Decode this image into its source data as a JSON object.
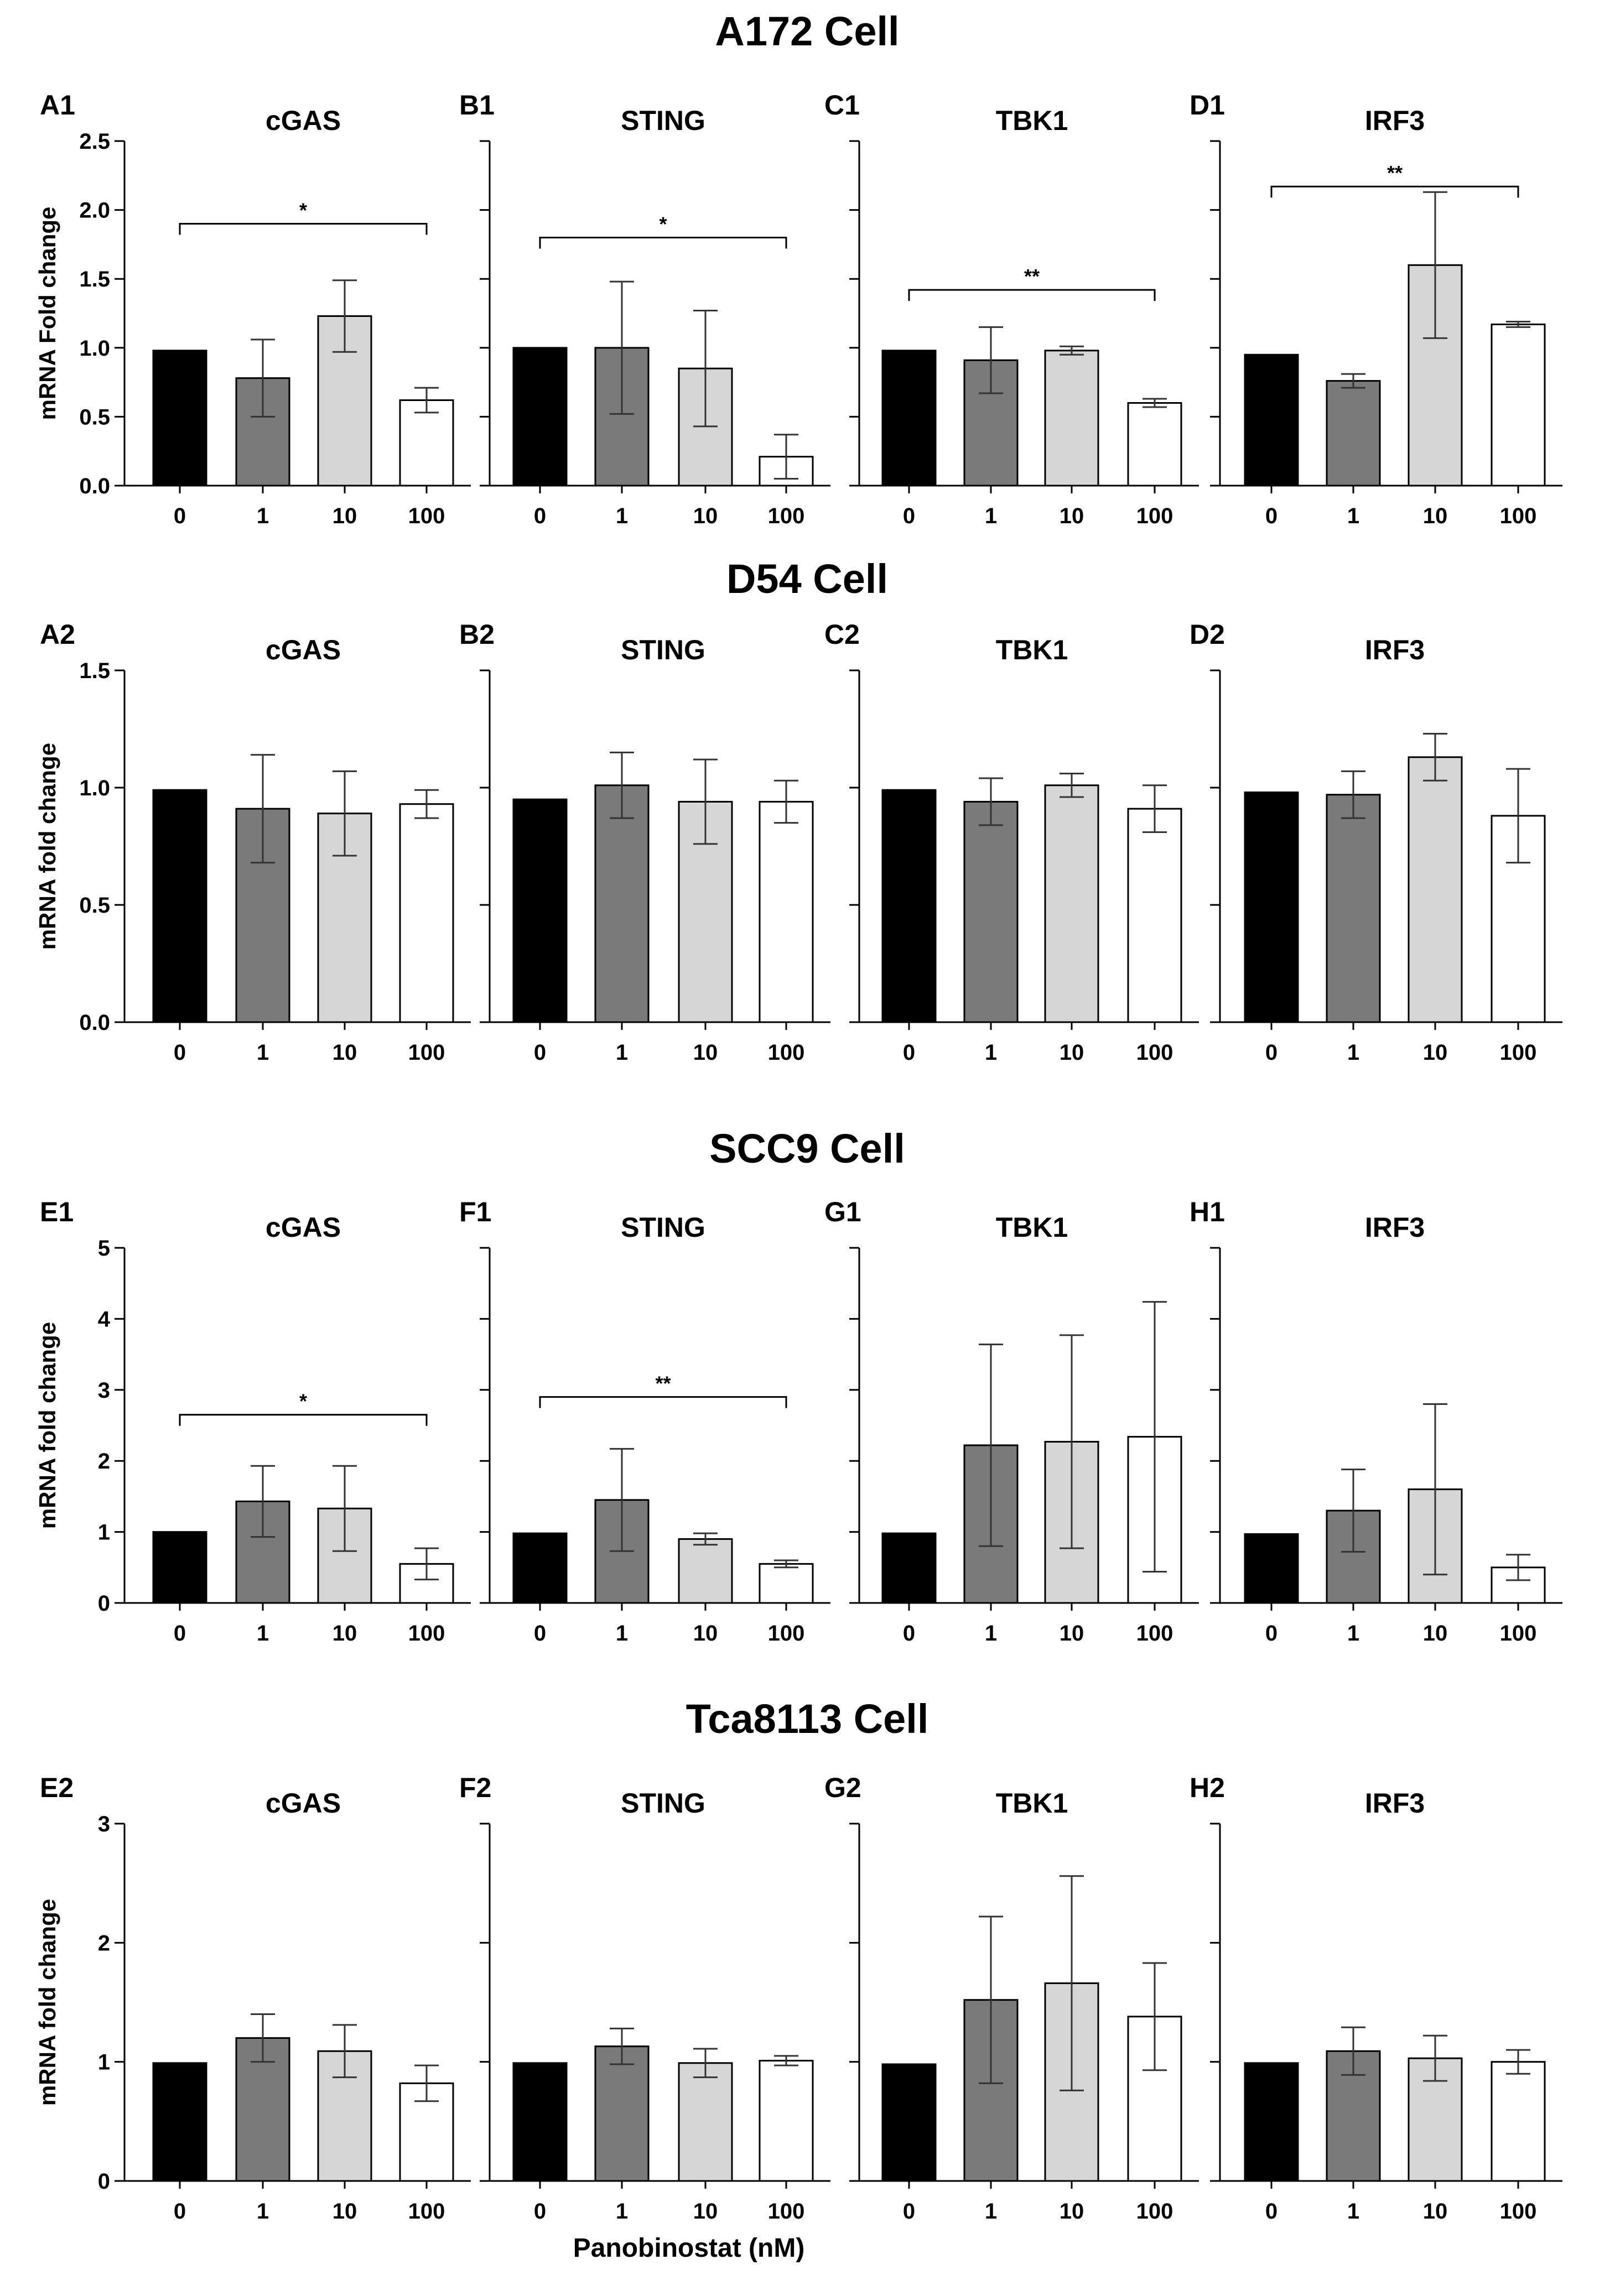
{
  "colors": {
    "c0": "#000000",
    "c1": "#7a7a7a",
    "c10": "#d6d6d6",
    "c100": "#ffffff",
    "axis": "#000000"
  },
  "sections": [
    {
      "title": "A172 Cell",
      "ylabel": "mRNA Fold change",
      "ylim": [
        0,
        2.5
      ],
      "yticks": [
        0,
        0.5,
        1.0,
        1.5,
        2.0,
        2.5
      ],
      "ytick_labels": [
        "0.0",
        "0.5",
        "1.0",
        "1.5",
        "2.0",
        "2.5"
      ]
    },
    {
      "title": "D54 Cell",
      "ylabel": "mRNA fold change",
      "ylim": [
        0,
        1.5
      ],
      "yticks": [
        0,
        0.5,
        1.0,
        1.5
      ],
      "ytick_labels": [
        "0.0",
        "0.5",
        "1.0",
        "1.5"
      ]
    },
    {
      "title": "SCC9 Cell",
      "ylabel": "mRNA fold change",
      "ylim": [
        0,
        5
      ],
      "yticks": [
        0,
        1,
        2,
        3,
        4,
        5
      ],
      "ytick_labels": [
        "0",
        "1",
        "2",
        "3",
        "4",
        "5"
      ]
    },
    {
      "title": "Tca8113 Cell",
      "ylabel": "mRNA fold change",
      "ylim": [
        0,
        3
      ],
      "yticks": [
        0,
        1,
        2,
        3
      ],
      "ytick_labels": [
        "0",
        "1",
        "2",
        "3"
      ]
    }
  ],
  "xlabel": "Panobinostat (nM)",
  "chart_data": [
    {
      "type": "bar",
      "section": 0,
      "label": "A1",
      "title": "cGAS",
      "categories": [
        "0",
        "1",
        "10",
        "100"
      ],
      "values": [
        0.98,
        0.78,
        1.23,
        0.62
      ],
      "errors": [
        0,
        0.28,
        0.26,
        0.09
      ],
      "significance": {
        "from": 0,
        "to": 3,
        "y": 1.9,
        "text": "*"
      }
    },
    {
      "type": "bar",
      "section": 0,
      "label": "B1",
      "title": "STING",
      "categories": [
        "0",
        "1",
        "10",
        "100"
      ],
      "values": [
        1.0,
        1.0,
        0.85,
        0.21
      ],
      "errors": [
        0,
        0.48,
        0.42,
        0.16
      ],
      "significance": {
        "from": 0,
        "to": 3,
        "y": 1.8,
        "text": "*"
      }
    },
    {
      "type": "bar",
      "section": 0,
      "label": "C1",
      "title": "TBK1",
      "categories": [
        "0",
        "1",
        "10",
        "100"
      ],
      "values": [
        0.98,
        0.91,
        0.98,
        0.6
      ],
      "errors": [
        0,
        0.24,
        0.03,
        0.03
      ],
      "significance": {
        "from": 0,
        "to": 3,
        "y": 1.42,
        "text": "**"
      }
    },
    {
      "type": "bar",
      "section": 0,
      "label": "D1",
      "title": "IRF3",
      "categories": [
        "0",
        "1",
        "10",
        "100"
      ],
      "values": [
        0.95,
        0.76,
        1.6,
        1.17
      ],
      "errors": [
        0,
        0.05,
        0.53,
        0.02
      ],
      "significance": {
        "from": 0,
        "to": 3,
        "y": 2.17,
        "text": "**"
      }
    },
    {
      "type": "bar",
      "section": 1,
      "label": "A2",
      "title": "cGAS",
      "categories": [
        "0",
        "1",
        "10",
        "100"
      ],
      "values": [
        0.99,
        0.91,
        0.89,
        0.93
      ],
      "errors": [
        0,
        0.23,
        0.18,
        0.06
      ]
    },
    {
      "type": "bar",
      "section": 1,
      "label": "B2",
      "title": "STING",
      "categories": [
        "0",
        "1",
        "10",
        "100"
      ],
      "values": [
        0.95,
        1.01,
        0.94,
        0.94
      ],
      "errors": [
        0,
        0.14,
        0.18,
        0.09
      ]
    },
    {
      "type": "bar",
      "section": 1,
      "label": "C2",
      "title": "TBK1",
      "categories": [
        "0",
        "1",
        "10",
        "100"
      ],
      "values": [
        0.99,
        0.94,
        1.01,
        0.91
      ],
      "errors": [
        0,
        0.1,
        0.05,
        0.1
      ]
    },
    {
      "type": "bar",
      "section": 1,
      "label": "D2",
      "title": "IRF3",
      "categories": [
        "0",
        "1",
        "10",
        "100"
      ],
      "values": [
        0.98,
        0.97,
        1.13,
        0.88
      ],
      "errors": [
        0,
        0.1,
        0.1,
        0.2
      ]
    },
    {
      "type": "bar",
      "section": 2,
      "label": "E1",
      "title": "cGAS",
      "categories": [
        "0",
        "1",
        "10",
        "100"
      ],
      "values": [
        1.0,
        1.43,
        1.33,
        0.55
      ],
      "errors": [
        0,
        0.5,
        0.6,
        0.22
      ],
      "significance": {
        "from": 0,
        "to": 3,
        "y": 2.65,
        "text": "*"
      }
    },
    {
      "type": "bar",
      "section": 2,
      "label": "F1",
      "title": "STING",
      "categories": [
        "0",
        "1",
        "10",
        "100"
      ],
      "values": [
        0.98,
        1.45,
        0.9,
        0.55
      ],
      "errors": [
        0,
        0.72,
        0.08,
        0.05
      ],
      "significance": {
        "from": 0,
        "to": 3,
        "y": 2.9,
        "text": "**"
      }
    },
    {
      "type": "bar",
      "section": 2,
      "label": "G1",
      "title": "TBK1",
      "categories": [
        "0",
        "1",
        "10",
        "100"
      ],
      "values": [
        0.98,
        2.22,
        2.27,
        2.34
      ],
      "errors": [
        0,
        1.42,
        1.5,
        1.9
      ]
    },
    {
      "type": "bar",
      "section": 2,
      "label": "H1",
      "title": "IRF3",
      "categories": [
        "0",
        "1",
        "10",
        "100"
      ],
      "values": [
        0.97,
        1.3,
        1.6,
        0.5
      ],
      "errors": [
        0,
        0.58,
        1.2,
        0.18
      ]
    },
    {
      "type": "bar",
      "section": 3,
      "label": "E2",
      "title": "cGAS",
      "categories": [
        "0",
        "1",
        "10",
        "100"
      ],
      "values": [
        0.99,
        1.2,
        1.09,
        0.82
      ],
      "errors": [
        0,
        0.2,
        0.22,
        0.15
      ]
    },
    {
      "type": "bar",
      "section": 3,
      "label": "F2",
      "title": "STING",
      "categories": [
        "0",
        "1",
        "10",
        "100"
      ],
      "values": [
        0.99,
        1.13,
        0.99,
        1.01
      ],
      "errors": [
        0,
        0.15,
        0.12,
        0.04
      ]
    },
    {
      "type": "bar",
      "section": 3,
      "label": "G2",
      "title": "TBK1",
      "categories": [
        "0",
        "1",
        "10",
        "100"
      ],
      "values": [
        0.98,
        1.52,
        1.66,
        1.38
      ],
      "errors": [
        0,
        0.7,
        0.9,
        0.45
      ]
    },
    {
      "type": "bar",
      "section": 3,
      "label": "H2",
      "title": "IRF3",
      "categories": [
        "0",
        "1",
        "10",
        "100"
      ],
      "values": [
        0.99,
        1.09,
        1.03,
        1.0
      ],
      "errors": [
        0,
        0.2,
        0.19,
        0.1
      ]
    }
  ]
}
